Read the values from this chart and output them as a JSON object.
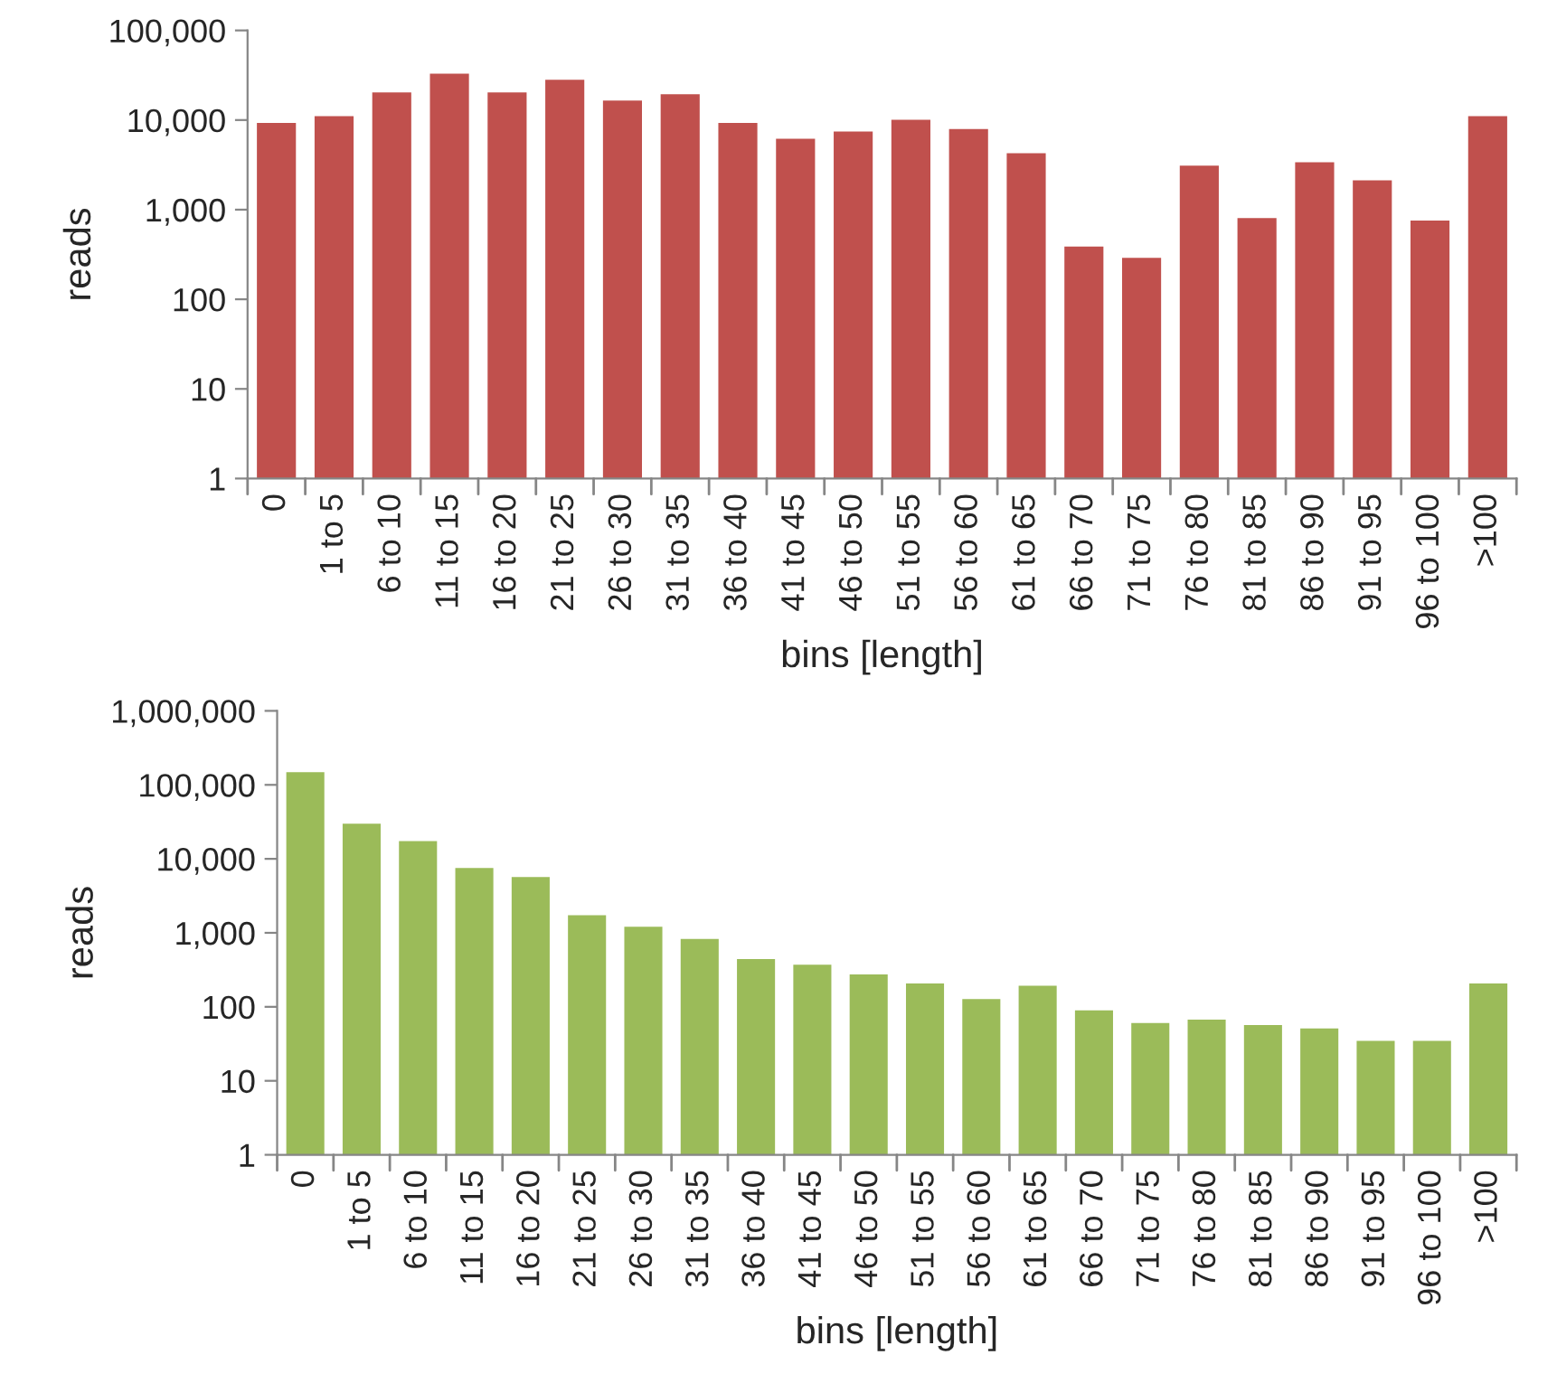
{
  "chart_data": [
    {
      "type": "bar",
      "xlabel": "bins [length]",
      "ylabel": "reads",
      "log": true,
      "grid": false,
      "categories": [
        "0",
        "1 to 5",
        "6 to 10",
        "11 to 15",
        "16 to 20",
        "21 to 25",
        "26 to 30",
        "31 to 35",
        "36 to 40",
        "41 to 45",
        "46 to 50",
        "51 to 55",
        "56 to 60",
        "61 to 65",
        "66 to 70",
        "71 to 75",
        "76 to 80",
        "81 to 85",
        "86 to 90",
        "91 to 95",
        "96 to 100",
        ">100"
      ],
      "series": [
        {
          "color": "#c0504d",
          "values": [
            9600,
            11400,
            21000,
            34000,
            21000,
            29000,
            17000,
            20000,
            9600,
            6400,
            7700,
            10400,
            8200,
            4400,
            400,
            300,
            3200,
            830,
            3500,
            2200,
            780,
            11400
          ]
        }
      ],
      "ylim": [
        1,
        100000
      ],
      "yticks": [
        1,
        10,
        100,
        {
          "value": 1000,
          "label": "1,000"
        },
        {
          "value": 10000,
          "label": "10,000"
        },
        {
          "value": 100000,
          "label": "100,000"
        }
      ]
    },
    {
      "type": "bar",
      "xlabel": "bins [length]",
      "ylabel": "reads",
      "log": true,
      "grid": false,
      "categories": [
        "0",
        "1 to 5",
        "6 to 10",
        "11 to 15",
        "16 to 20",
        "21 to 25",
        "26 to 30",
        "31 to 35",
        "36 to 40",
        "41 to 45",
        "46 to 50",
        "51 to 55",
        "56 to 60",
        "61 to 65",
        "66 to 70",
        "71 to 75",
        "76 to 80",
        "81 to 85",
        "86 to 90",
        "91 to 95",
        "96 to 100",
        ">100"
      ],
      "series": [
        {
          "color": "#9bbb59",
          "values": [
            154000,
            31000,
            18000,
            7800,
            5900,
            1800,
            1260,
            860,
            460,
            385,
            284,
            215,
            132,
            200,
            93,
            63,
            70,
            59,
            53,
            36,
            36,
            215
          ]
        }
      ],
      "ylim": [
        1,
        1000000
      ],
      "yticks": [
        1,
        10,
        100,
        {
          "value": 1000,
          "label": "1,000"
        },
        {
          "value": 10000,
          "label": "10,000"
        },
        {
          "value": 100000,
          "label": "100,000"
        },
        {
          "value": 1000000,
          "label": "1,000,000"
        }
      ]
    }
  ]
}
